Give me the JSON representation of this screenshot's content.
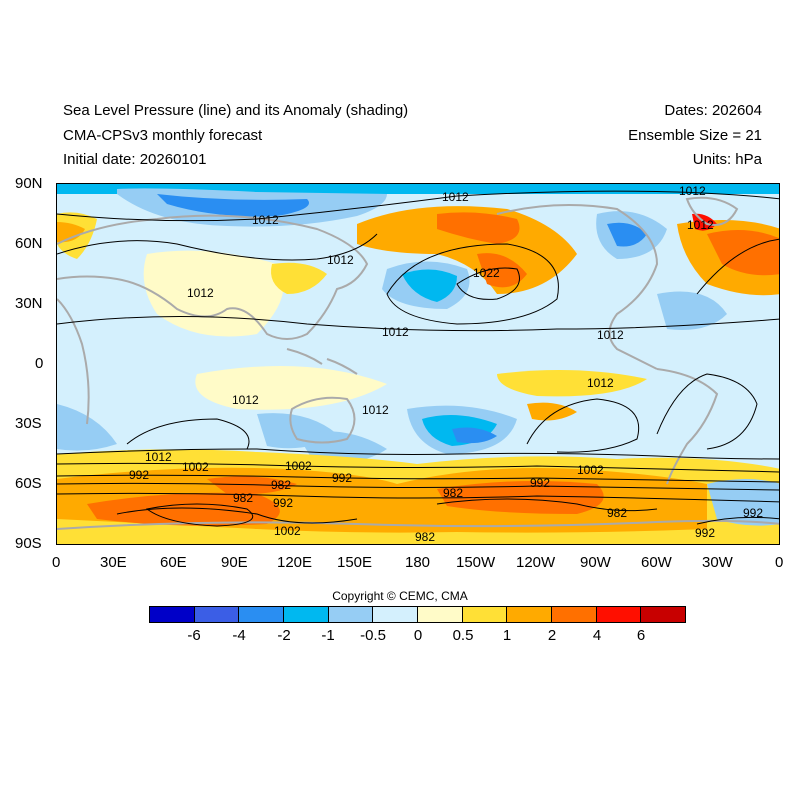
{
  "titles": {
    "left": [
      "Sea Level Pressure (line) and its Anomaly (shading)",
      "CMA-CPSv3 monthly forecast",
      "Initial date: 20260101"
    ],
    "right": [
      "Dates: 202604",
      "Ensemble Size = 21",
      "Units: hPa"
    ]
  },
  "map": {
    "y_ticks": [
      "90N",
      "60N",
      "30N",
      "0",
      "30S",
      "60S",
      "90S"
    ],
    "x_ticks": [
      "0",
      "30E",
      "60E",
      "90E",
      "120E",
      "150E",
      "180",
      "150W",
      "120W",
      "90W",
      "60W",
      "30W",
      "0"
    ],
    "contour_labels": [
      "1012",
      "1012",
      "1012",
      "1012",
      "1022",
      "1012",
      "1012",
      "1012",
      "1012",
      "1012",
      "1012",
      "1012",
      "1012",
      "1002",
      "1002",
      "1002",
      "992",
      "992",
      "992",
      "992",
      "992",
      "982",
      "982",
      "982",
      "982",
      "982",
      "1002",
      "992"
    ]
  },
  "copyright": "Copyright © CEMC, CMA",
  "colorbar": {
    "colors": [
      "#0000c8",
      "#3b5ee6",
      "#2a8ef2",
      "#00b8f0",
      "#96cdf4",
      "#d4f0fd",
      "#fffbc8",
      "#ffe036",
      "#ffaa00",
      "#ff7000",
      "#ff0f00",
      "#c80000"
    ],
    "labels": [
      "-6",
      "-4",
      "-2",
      "-1",
      "-0.5",
      "0",
      "0.5",
      "1",
      "2",
      "4",
      "6"
    ]
  },
  "palette": {
    "land": "#aaaaaa",
    "contour": "#000000"
  }
}
